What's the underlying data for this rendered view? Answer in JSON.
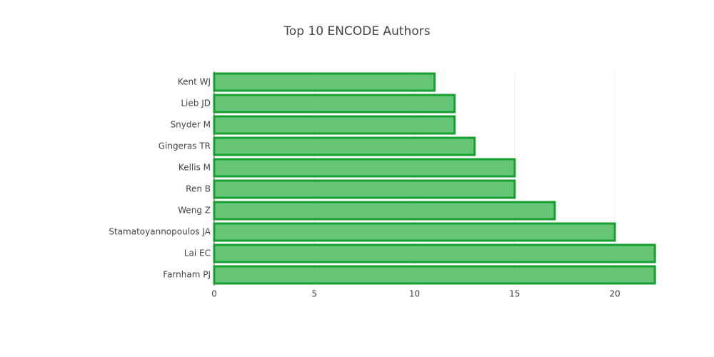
{
  "chart_data": {
    "type": "bar",
    "orientation": "horizontal",
    "title": "Top 10 ENCODE Authors",
    "categories": [
      "Kent WJ",
      "Lieb JD",
      "Snyder M",
      "Gingeras TR",
      "Kellis M",
      "Ren B",
      "Weng Z",
      "Stamatoyannopoulos JA",
      "Lai EC",
      "Farnham PJ"
    ],
    "values": [
      11,
      12,
      12,
      13,
      15,
      15,
      17,
      20,
      22,
      22
    ],
    "color": "#66c576",
    "line_color": "#17a02f",
    "xlim": [
      0,
      22.1
    ],
    "xticks": [
      0,
      5,
      10,
      15,
      20
    ],
    "grid": true
  }
}
